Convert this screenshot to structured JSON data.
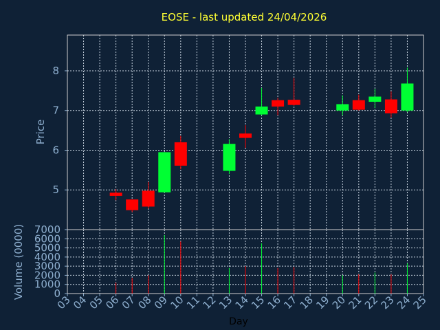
{
  "chart_data": {
    "type": "candlestick",
    "title": "EOSE - last updated 24/04/2026",
    "xlabel": "Day",
    "price_panel": {
      "ylabel": "Price",
      "ylim": [
        4.0,
        8.9
      ],
      "yticks": [
        "5",
        "6",
        "7",
        "8"
      ],
      "grid": true
    },
    "volume_panel": {
      "ylabel": "Volume (0000)",
      "ylim": [
        0,
        7000
      ],
      "yticks": [
        "0",
        "1000",
        "2000",
        "3000",
        "4000",
        "5000",
        "6000",
        "7000"
      ],
      "grid": true
    },
    "x_ticks": [
      "03",
      "04",
      "05",
      "06",
      "07",
      "08",
      "09",
      "10",
      "11",
      "12",
      "13",
      "14",
      "15",
      "16",
      "17",
      "18",
      "19",
      "20",
      "21",
      "22",
      "23",
      "24",
      "25"
    ],
    "up_color": "#00ff33",
    "down_color": "#ff0000",
    "background": "#0f2136",
    "candles": [
      {
        "day": "06",
        "open": 4.93,
        "high": 5.02,
        "low": 4.74,
        "close": 4.85,
        "volume": 1200
      },
      {
        "day": "07",
        "open": 4.76,
        "high": 4.76,
        "low": 4.44,
        "close": 4.49,
        "volume": 1700
      },
      {
        "day": "08",
        "open": 4.98,
        "high": 5.2,
        "low": 4.53,
        "close": 4.58,
        "volume": 2000
      },
      {
        "day": "09",
        "open": 4.94,
        "high": 5.95,
        "low": 4.93,
        "close": 5.95,
        "volume": 6400
      },
      {
        "day": "10",
        "open": 6.2,
        "high": 6.36,
        "low": 5.52,
        "close": 5.61,
        "volume": 5700
      },
      {
        "day": "13",
        "open": 5.48,
        "high": 6.28,
        "low": 5.4,
        "close": 6.16,
        "volume": 2800
      },
      {
        "day": "14",
        "open": 6.42,
        "high": 6.63,
        "low": 6.06,
        "close": 6.31,
        "volume": 3000
      },
      {
        "day": "15",
        "open": 6.9,
        "high": 7.57,
        "low": 6.88,
        "close": 7.1,
        "volume": 5500
      },
      {
        "day": "16",
        "open": 7.26,
        "high": 7.32,
        "low": 6.88,
        "close": 7.1,
        "volume": 2800
      },
      {
        "day": "17",
        "open": 7.27,
        "high": 7.82,
        "low": 7.12,
        "close": 7.14,
        "volume": 2900
      },
      {
        "day": "20",
        "open": 7.0,
        "high": 7.38,
        "low": 6.88,
        "close": 7.16,
        "volume": 2000
      },
      {
        "day": "21",
        "open": 7.26,
        "high": 7.4,
        "low": 7.0,
        "close": 7.02,
        "volume": 2100
      },
      {
        "day": "22",
        "open": 7.22,
        "high": 7.55,
        "low": 7.06,
        "close": 7.35,
        "volume": 2300
      },
      {
        "day": "23",
        "open": 7.28,
        "high": 7.48,
        "low": 6.82,
        "close": 6.93,
        "volume": 2100
      },
      {
        "day": "24",
        "open": 7.0,
        "high": 8.08,
        "low": 6.96,
        "close": 7.68,
        "volume": 3300
      }
    ]
  }
}
